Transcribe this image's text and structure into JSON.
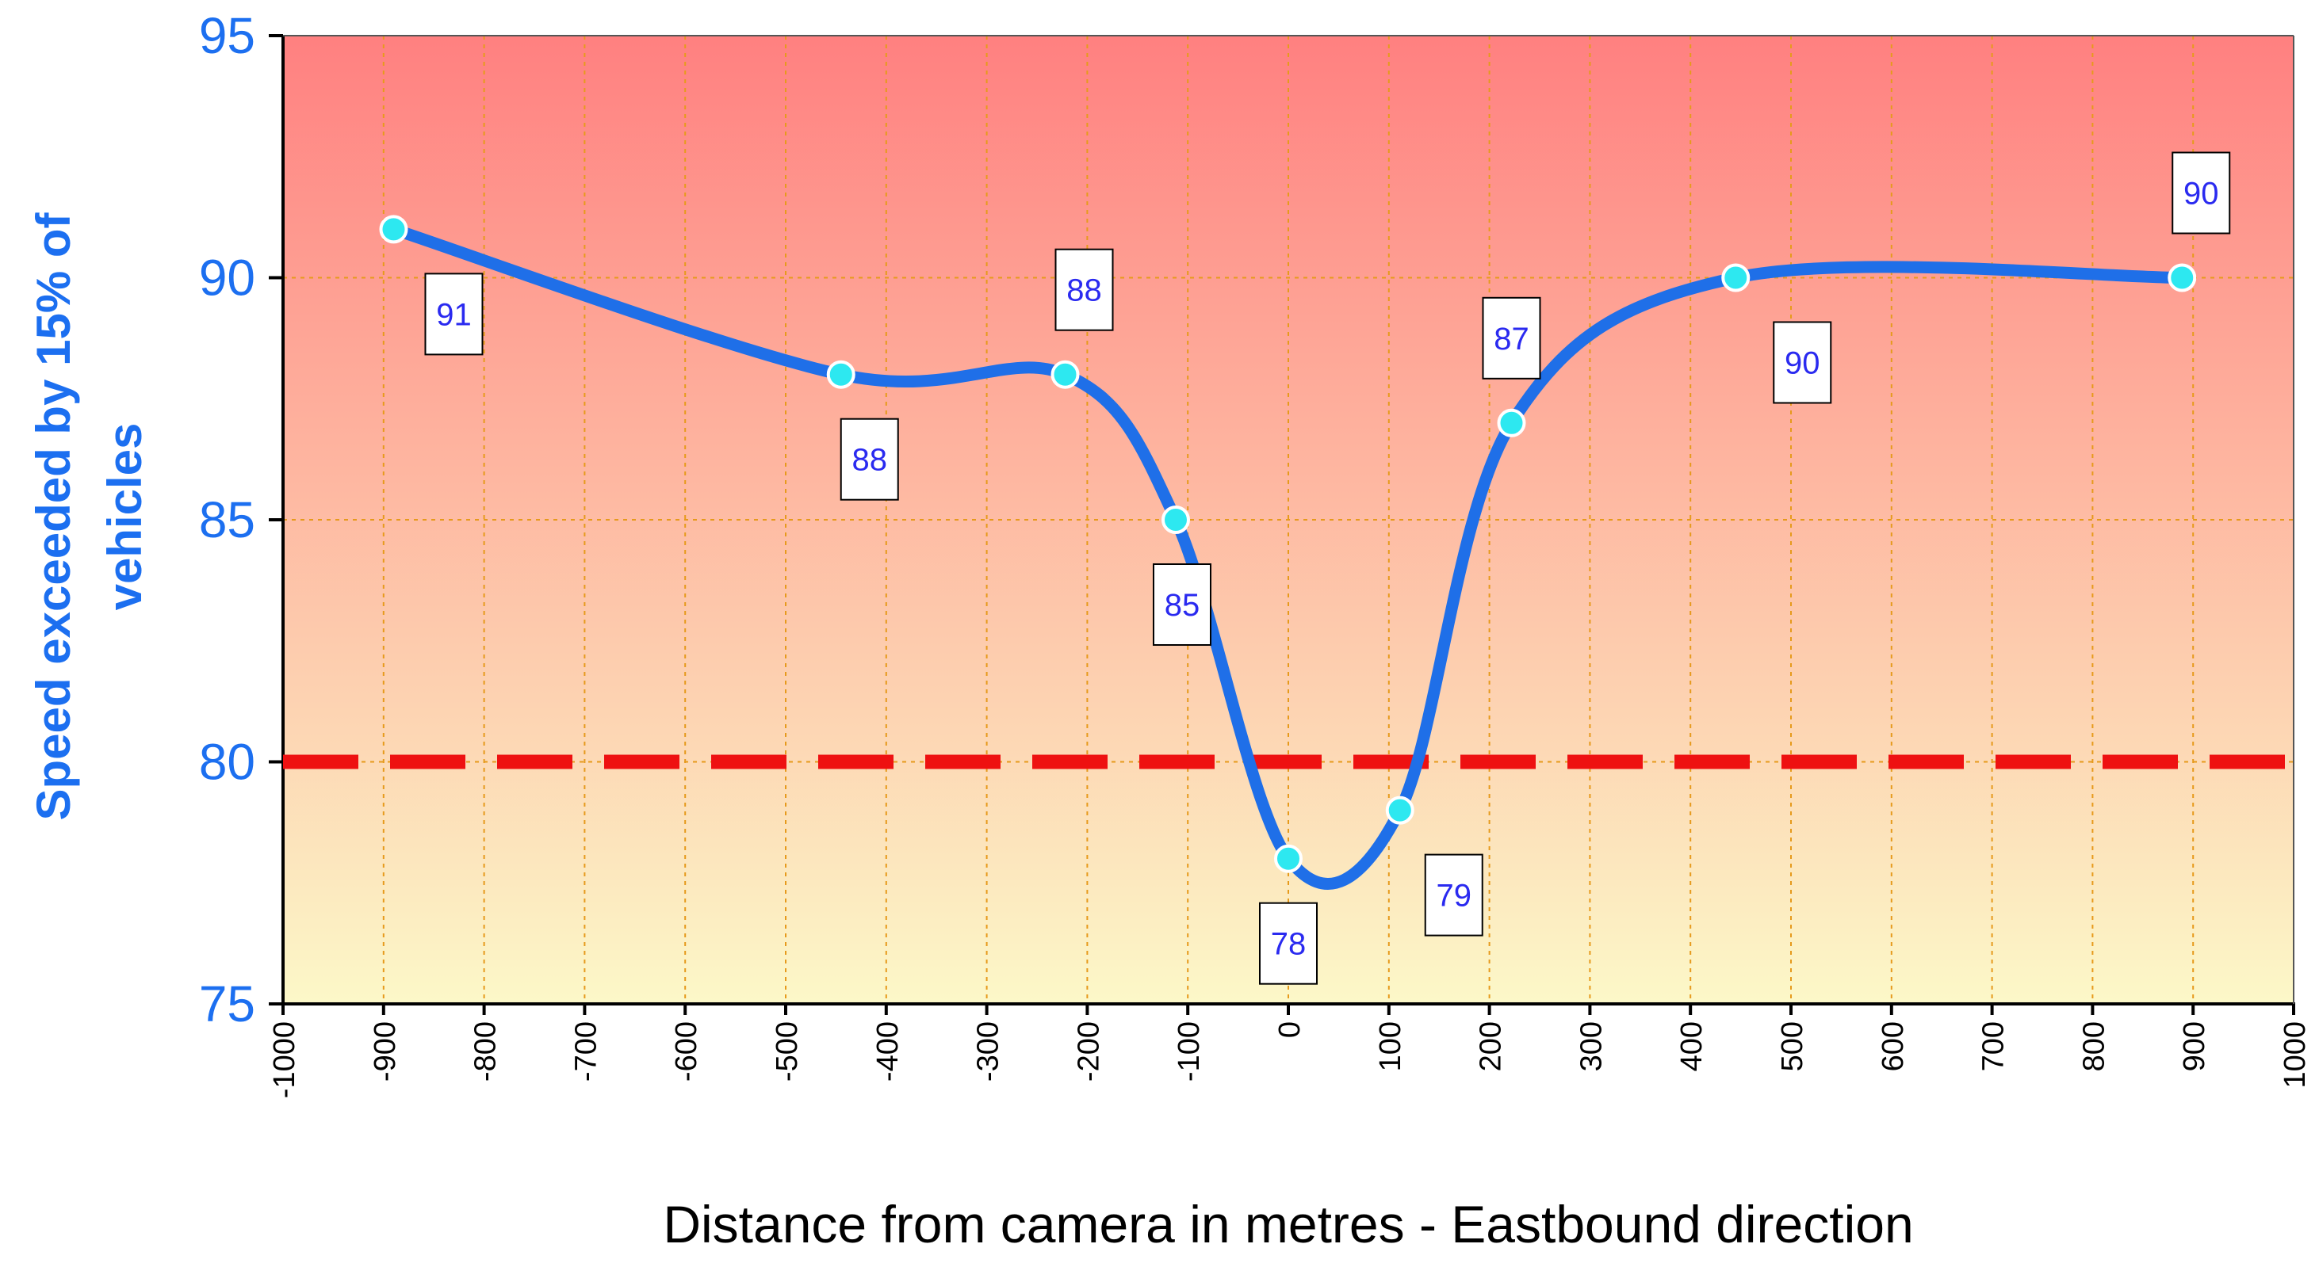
{
  "chart_data": {
    "type": "line",
    "title": "",
    "xlabel": "Distance from camera in metres - Eastbound direction",
    "ylabel": "Speed exceeded by 15% of vehicles",
    "xlim": [
      -1000,
      1000
    ],
    "ylim": [
      75,
      95
    ],
    "x_ticks": [
      -1000,
      -900,
      -800,
      -700,
      -600,
      -500,
      -400,
      -300,
      -200,
      -100,
      0,
      100,
      200,
      300,
      400,
      500,
      600,
      700,
      800,
      900,
      1000
    ],
    "y_ticks": [
      75,
      80,
      85,
      90,
      95
    ],
    "grid": true,
    "series": [
      {
        "x": [
          -890,
          -445,
          -222,
          -112,
          0,
          111,
          222,
          445,
          889
        ],
        "y": [
          91,
          88,
          88,
          85,
          78,
          79,
          87,
          90,
          90
        ],
        "labels": [
          "91",
          "88",
          "88",
          "85",
          "78",
          "79",
          "87",
          "90",
          "90"
        ],
        "color": "#1f6fe8"
      }
    ],
    "reference_line": {
      "y": 80,
      "style": "dashed",
      "color": "#ee1111"
    },
    "background_gradient": {
      "top": "#ff8080",
      "bottom": "#fcf8c8"
    }
  }
}
